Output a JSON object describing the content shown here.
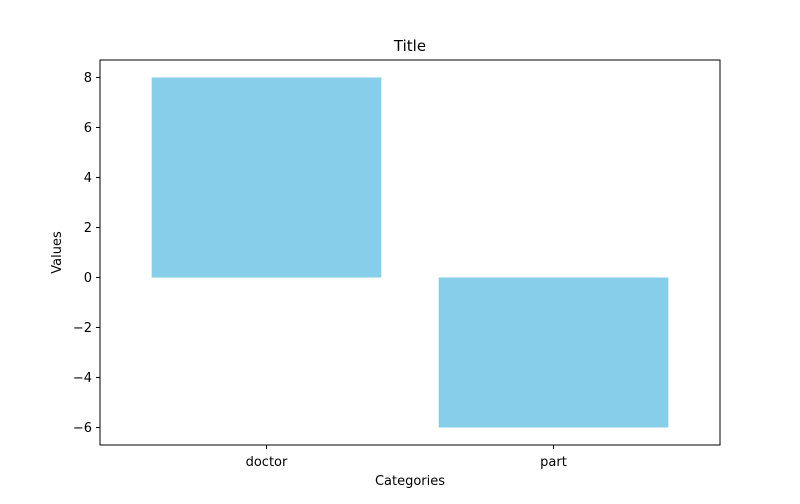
{
  "chart_data": {
    "type": "bar",
    "title": "Title",
    "xlabel": "Categories",
    "ylabel": "Values",
    "categories": [
      "doctor",
      "part"
    ],
    "values": [
      8,
      -6
    ],
    "ylim": [
      -6.7,
      8.7
    ],
    "yticks": [
      -6,
      -4,
      -2,
      0,
      2,
      4,
      6,
      8
    ],
    "ytick_labels": [
      "−6",
      "−4",
      "−2",
      "0",
      "2",
      "4",
      "6",
      "8"
    ],
    "bar_color": "#87CEEB",
    "grid": false,
    "legend": false
  }
}
